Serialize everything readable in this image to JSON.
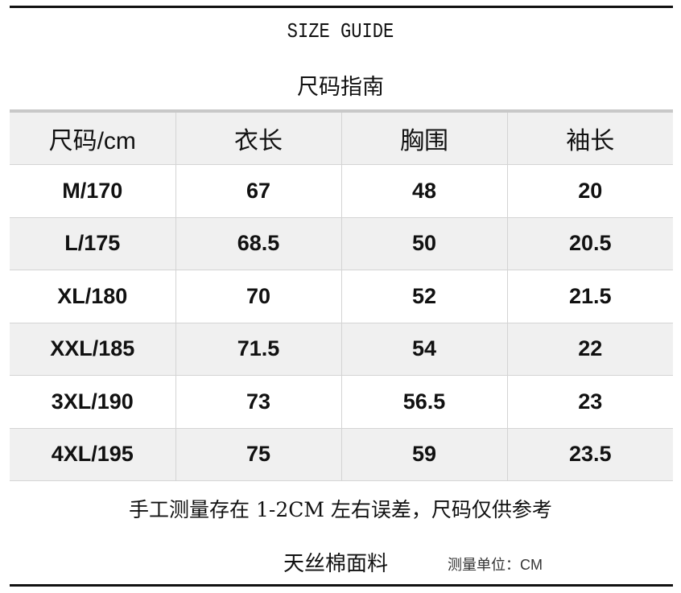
{
  "title_en": "SIZE GUIDE",
  "title_cn": "尺码指南",
  "table": {
    "headers": [
      "尺码/cm",
      "衣长",
      "胸围",
      "袖长"
    ],
    "rows": [
      [
        "M/170",
        "67",
        "48",
        "20"
      ],
      [
        "L/175",
        "68.5",
        "50",
        "20.5"
      ],
      [
        "XL/180",
        "70",
        "52",
        "21.5"
      ],
      [
        "XXL/185",
        "71.5",
        "54",
        "22"
      ],
      [
        "3XL/190",
        "73",
        "56.5",
        "23"
      ],
      [
        "4XL/195",
        "75",
        "59",
        "23.5"
      ]
    ]
  },
  "note": "手工测量存在 1-2CM 左右误差，尺码仅供参考",
  "fabric": "天丝棉面料",
  "unit": "测量单位：CM"
}
